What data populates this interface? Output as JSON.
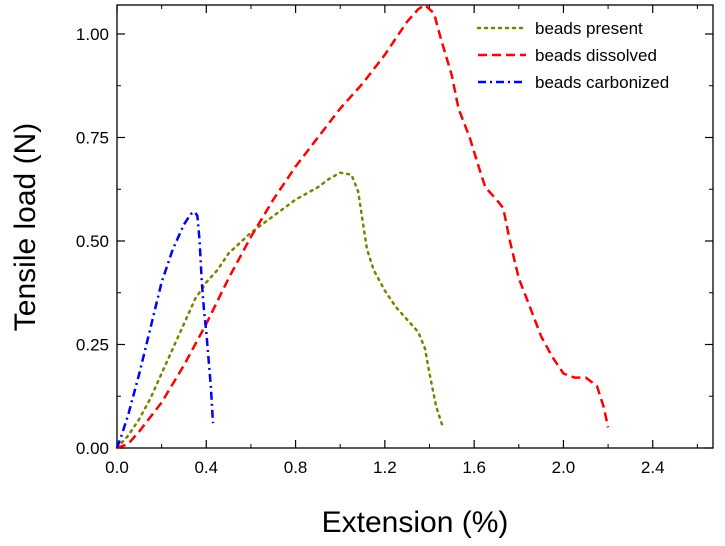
{
  "chart_data": {
    "type": "line",
    "xlabel": "Extension (%)",
    "ylabel": "Tensile load (N)",
    "xlim": [
      0.0,
      2.67
    ],
    "ylim": [
      0.0,
      1.07
    ],
    "xticks": [
      0.0,
      0.4,
      0.8,
      1.2,
      1.6,
      2.0,
      2.4
    ],
    "xtick_labels": [
      "0.0",
      "0.4",
      "0.8",
      "1.2",
      "1.6",
      "2.0",
      "2.4"
    ],
    "yticks": [
      0.0,
      0.25,
      0.5,
      0.75,
      1.0
    ],
    "ytick_labels": [
      "0.00",
      "0.25",
      "0.50",
      "0.75",
      "1.00"
    ],
    "grid": false,
    "legend_position": "top-right",
    "series": [
      {
        "name": "beads present",
        "color": "#808000",
        "dash": "dotted",
        "x": [
          0.0,
          0.05,
          0.1,
          0.15,
          0.2,
          0.25,
          0.3,
          0.35,
          0.4,
          0.45,
          0.5,
          0.6,
          0.7,
          0.8,
          0.9,
          0.95,
          1.0,
          1.05,
          1.08,
          1.1,
          1.12,
          1.15,
          1.2,
          1.25,
          1.3,
          1.35,
          1.38,
          1.4,
          1.43,
          1.46
        ],
        "y": [
          0.0,
          0.03,
          0.07,
          0.12,
          0.18,
          0.24,
          0.3,
          0.36,
          0.4,
          0.43,
          0.47,
          0.52,
          0.56,
          0.6,
          0.63,
          0.65,
          0.665,
          0.66,
          0.62,
          0.55,
          0.48,
          0.43,
          0.38,
          0.34,
          0.31,
          0.28,
          0.24,
          0.18,
          0.1,
          0.05
        ]
      },
      {
        "name": "beads dissolved",
        "color": "#ff0000",
        "dash": "dashed",
        "x": [
          0.0,
          0.05,
          0.1,
          0.2,
          0.3,
          0.4,
          0.5,
          0.6,
          0.7,
          0.8,
          0.9,
          1.0,
          1.1,
          1.2,
          1.25,
          1.3,
          1.35,
          1.38,
          1.42,
          1.45,
          1.5,
          1.53,
          1.58,
          1.62,
          1.65,
          1.7,
          1.73,
          1.76,
          1.8,
          1.85,
          1.9,
          1.95,
          2.0,
          2.05,
          2.1,
          2.15,
          2.18,
          2.2
        ],
        "y": [
          0.0,
          0.01,
          0.04,
          0.11,
          0.2,
          0.3,
          0.41,
          0.51,
          0.6,
          0.68,
          0.75,
          0.82,
          0.88,
          0.95,
          0.99,
          1.03,
          1.06,
          1.07,
          1.05,
          0.99,
          0.9,
          0.82,
          0.75,
          0.68,
          0.63,
          0.6,
          0.58,
          0.5,
          0.41,
          0.34,
          0.27,
          0.22,
          0.18,
          0.17,
          0.17,
          0.15,
          0.1,
          0.05
        ]
      },
      {
        "name": "beads carbonized",
        "color": "#0000ff",
        "dash": "dashdot",
        "x": [
          0.0,
          0.02,
          0.05,
          0.1,
          0.15,
          0.2,
          0.25,
          0.3,
          0.33,
          0.35,
          0.36,
          0.37,
          0.38,
          0.39,
          0.4,
          0.42,
          0.43
        ],
        "y": [
          0.0,
          0.03,
          0.08,
          0.18,
          0.29,
          0.4,
          0.48,
          0.54,
          0.565,
          0.57,
          0.56,
          0.5,
          0.4,
          0.33,
          0.28,
          0.15,
          0.06
        ]
      }
    ]
  }
}
